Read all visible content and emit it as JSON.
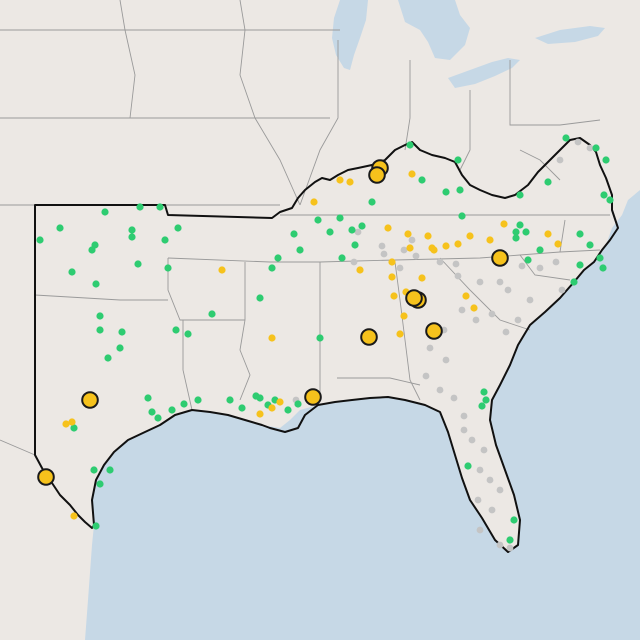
{
  "map": {
    "colors": {
      "water": "#c6d8e6",
      "land": "#ece8e4",
      "state_line": "#9a9a9a",
      "region_outline": "#111111",
      "green": "#2ecc71",
      "yellow": "#f6c21c",
      "gray": "#c4c4c4",
      "large_marker_stroke": "#1a1a1a"
    },
    "legend": "none",
    "labels": "none"
  }
}
